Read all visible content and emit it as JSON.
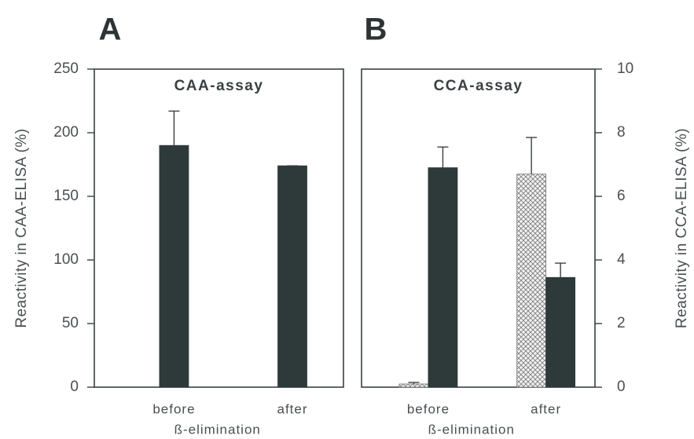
{
  "chart_data": [
    {
      "type": "bar",
      "panel_label": "A",
      "title": "CAA-assay",
      "categories": [
        "before",
        "after"
      ],
      "xlabel": "ß-elimination",
      "ylabel": "Reactivity in CAA-ELISA (%)",
      "ylim": [
        0,
        250
      ],
      "yticks": [
        0,
        50,
        100,
        150,
        200,
        250
      ],
      "series": [
        {
          "color": "#2d3a39",
          "values": [
            190,
            174
          ],
          "errors": [
            27,
            0
          ]
        }
      ]
    },
    {
      "type": "bar",
      "panel_label": "B",
      "title": "CCA-assay",
      "categories": [
        "before",
        "after"
      ],
      "xlabel": "ß-elimination",
      "y2label": "Reactivity in CCA-ELISA (%)",
      "y2lim": [
        0,
        10
      ],
      "y2ticks": [
        0,
        2,
        4,
        6,
        8,
        10
      ],
      "series": [
        {
          "color": "#d9d9d9",
          "hatch": true,
          "axis": "y2",
          "values": [
            0.1,
            6.7
          ],
          "errors": [
            0.05,
            1.15
          ]
        },
        {
          "color": "#2d3a39",
          "axis": "y2",
          "values": [
            6.9,
            3.45
          ],
          "errors": [
            0.65,
            0.45
          ]
        }
      ]
    }
  ]
}
